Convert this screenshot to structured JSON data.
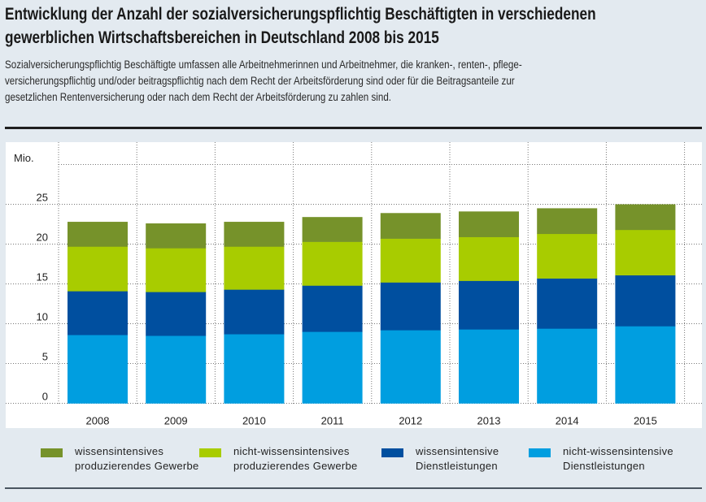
{
  "header": {
    "title_lines": [
      "Entwicklung der Anzahl der sozialversicherungspflichtig Beschäftigten in verschiedenen",
      "gewerblichen Wirtschaftsbereichen in Deutschland 2008 bis 2015"
    ],
    "subtitle_lines": [
      "Sozialversicherungspflichtig Beschäftigte umfassen alle Arbeitnehmerinnen und Arbeitnehmer, die kranken-, renten-, pflege-",
      "versicherungspflichtig und/oder beitragspflichtig nach dem Recht der Arbeitsförderung sind oder für die Beitragsanteile zur",
      "gesetzlichen Rentenversicherung oder nach dem Recht der Arbeitsförderung zu zahlen sind."
    ]
  },
  "colors": {
    "background": "#e3eaf0",
    "panel": "#ffffff",
    "wissensintensives_produzierendes": "#76922a",
    "nicht_wissensintensives_produzierendes": "#a8cc00",
    "wissensintensive_dienstleistungen": "#004f9f",
    "nicht_wissensintensive_dienstleistungen": "#009ee0"
  },
  "chart_data": {
    "type": "bar",
    "stacked": true,
    "title": "Entwicklung der Anzahl der sozialversicherungspflichtig Beschäftigten in verschiedenen gewerblichen Wirtschaftsbereichen in Deutschland 2008 bis 2015",
    "xlabel": "",
    "ylabel": "Mio.",
    "ylim": [
      0,
      30
    ],
    "yticks": [
      0,
      5,
      10,
      15,
      20,
      25
    ],
    "grid": true,
    "legend_position": "bottom",
    "categories": [
      "2008",
      "2009",
      "2010",
      "2011",
      "2012",
      "2013",
      "2014",
      "2015"
    ],
    "series": [
      {
        "name": "nicht-wissensintensive Dienstleistungen",
        "legend_lines": [
          "nicht-wissensintensive",
          "Dienstleistungen"
        ],
        "color": "#009ee0",
        "values": [
          8.6,
          8.5,
          8.7,
          9.0,
          9.2,
          9.3,
          9.4,
          9.7
        ]
      },
      {
        "name": "wissensintensive Dienstleistungen",
        "legend_lines": [
          "wissensintensive",
          "Dienstleistungen"
        ],
        "color": "#004f9f",
        "values": [
          5.5,
          5.5,
          5.6,
          5.8,
          6.0,
          6.1,
          6.3,
          6.4
        ]
      },
      {
        "name": "nicht-wissensintensives produzierendes Gewerbe",
        "legend_lines": [
          "nicht-wissensintensives",
          "produzierendes Gewerbe"
        ],
        "color": "#a8cc00",
        "values": [
          5.6,
          5.5,
          5.4,
          5.5,
          5.5,
          5.5,
          5.6,
          5.7
        ]
      },
      {
        "name": "wissensintensives produzierendes Gewerbe",
        "legend_lines": [
          "wissensintensives",
          "produzierendes Gewerbe"
        ],
        "color": "#76922a",
        "values": [
          3.1,
          3.1,
          3.1,
          3.1,
          3.2,
          3.2,
          3.2,
          3.2
        ]
      }
    ],
    "totals": [
      22.8,
      22.6,
      22.8,
      23.4,
      23.9,
      24.1,
      24.5,
      25.0
    ]
  }
}
